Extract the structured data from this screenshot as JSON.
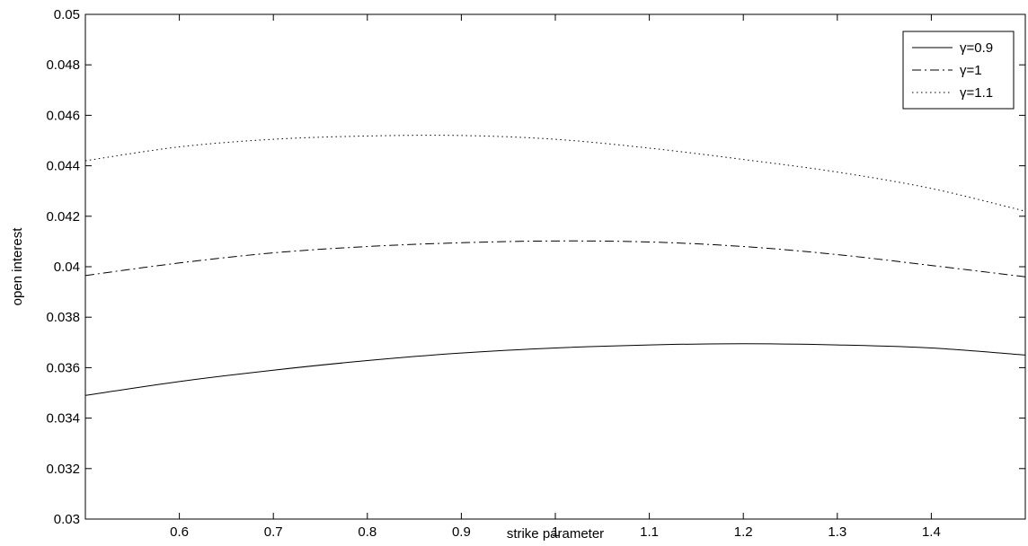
{
  "chart_data": {
    "type": "line",
    "title": "",
    "xlabel": "strike parameter",
    "ylabel": "open interest",
    "xlim": [
      0.5,
      1.5
    ],
    "ylim": [
      0.03,
      0.05
    ],
    "xticks": [
      0.6,
      0.7,
      0.8,
      0.9,
      1.0,
      1.1,
      1.2,
      1.3,
      1.4
    ],
    "xtick_labels": [
      "0.6",
      "0.7",
      "0.8",
      "0.9",
      "1",
      "1.1",
      "1.2",
      "1.3",
      "1.4"
    ],
    "yticks": [
      0.03,
      0.032,
      0.034,
      0.036,
      0.038,
      0.04,
      0.042,
      0.044,
      0.046,
      0.048,
      0.05
    ],
    "ytick_labels": [
      "0.03",
      "0.032",
      "0.034",
      "0.036",
      "0.038",
      "0.04",
      "0.042",
      "0.044",
      "0.046",
      "0.048",
      "0.05"
    ],
    "grid": false,
    "legend_position": "top-right",
    "x": [
      0.5,
      0.6,
      0.7,
      0.8,
      0.9,
      1.0,
      1.1,
      1.2,
      1.3,
      1.4,
      1.5
    ],
    "series": [
      {
        "name": "γ=0.9",
        "line_style": "solid",
        "values": [
          0.0349,
          0.03545,
          0.0359,
          0.03628,
          0.03658,
          0.03678,
          0.0369,
          0.03695,
          0.0369,
          0.03678,
          0.0365
        ]
      },
      {
        "name": "γ=1",
        "line_style": "dash-dot",
        "values": [
          0.03965,
          0.04015,
          0.04055,
          0.0408,
          0.04095,
          0.04102,
          0.04098,
          0.0408,
          0.04048,
          0.04005,
          0.0396
        ]
      },
      {
        "name": "γ=1.1",
        "line_style": "dotted",
        "values": [
          0.0442,
          0.04475,
          0.04505,
          0.04518,
          0.0452,
          0.04505,
          0.0447,
          0.04425,
          0.04375,
          0.0431,
          0.0422
        ]
      }
    ]
  }
}
